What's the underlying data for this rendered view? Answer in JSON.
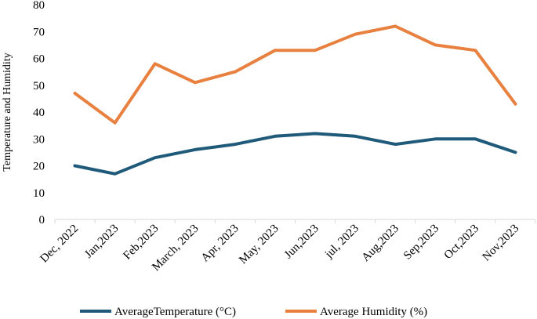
{
  "chart_data": {
    "type": "line",
    "title": "",
    "xlabel": "",
    "ylabel": "Temperature and Humidity",
    "ylim": [
      0,
      80
    ],
    "yticks": [
      0,
      10,
      20,
      30,
      40,
      50,
      60,
      70,
      80
    ],
    "grid": false,
    "legend_position": "bottom",
    "categories": [
      "Dec, 2022",
      "Jan,2023",
      "Feb,2023",
      "March, 2023",
      "Apr, 2023",
      "May, 2023",
      "Jun,2023",
      "jul, 2023",
      "Aug,2023",
      "Sep,2023",
      "Oct,2023",
      "Nov,2023"
    ],
    "series": [
      {
        "name": "AverageTemperature (°C)",
        "color": "#1f5a7a",
        "values": [
          20,
          17,
          23,
          26,
          28,
          31,
          32,
          31,
          28,
          30,
          30,
          25
        ]
      },
      {
        "name": "Average Humidity (%)",
        "color": "#e8803f",
        "values": [
          47,
          36,
          58,
          51,
          55,
          63,
          63,
          69,
          72,
          65,
          63,
          43
        ]
      }
    ]
  }
}
